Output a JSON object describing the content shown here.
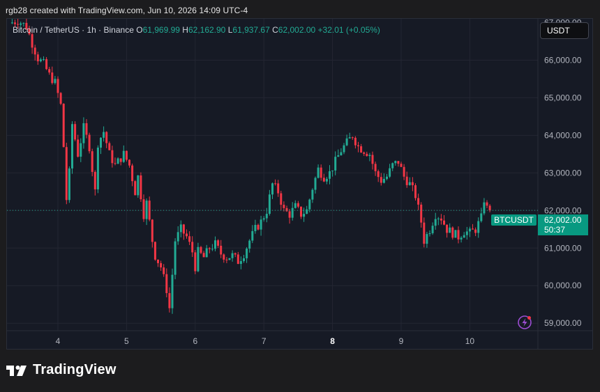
{
  "caption": "rgb28 created with TradingView.com, Jun 10, 2026 14:09 UTC-4",
  "legend": {
    "symbol": "Bitcoin / TetherUS · 1h · Binance",
    "open_key": "O",
    "open": "61,969.99",
    "high_key": "H",
    "high": "62,162.90",
    "low_key": "L",
    "low": "61,937.67",
    "close_key": "C",
    "close": "62,002.00",
    "change": "+32.01 (+0.05%)"
  },
  "currency_button": "USDT",
  "last_price": {
    "symbol": "BTCUSDT",
    "price": "62,002.00",
    "countdown": "50:37"
  },
  "branding": "TradingView",
  "icons": [
    "tradingview-logo-icon",
    "lightning-icon"
  ],
  "colors": {
    "up": "#22ab94",
    "down": "#f23645",
    "background": "#161a25",
    "grid": "#232632",
    "axis_text": "#b2b5be"
  },
  "chart_data": {
    "type": "candlestick",
    "title": "",
    "ylim": [
      58800,
      67100
    ],
    "y_ticks": [
      "59,000.00",
      "60,000.00",
      "61,000.00",
      "62,000.00",
      "63,000.00",
      "64,000.00",
      "65,000.00",
      "66,000.00"
    ],
    "y_tick_values": [
      59000,
      60000,
      61000,
      62000,
      63000,
      64000,
      65000,
      66000
    ],
    "x_ticks": [
      {
        "label": "4",
        "bold": false
      },
      {
        "label": "5",
        "bold": false
      },
      {
        "label": "6",
        "bold": false
      },
      {
        "label": "7",
        "bold": false
      },
      {
        "label": "8",
        "bold": true
      },
      {
        "label": "9",
        "bold": false
      },
      {
        "label": "10",
        "bold": false
      }
    ],
    "x_tick_hours": [
      17,
      41,
      65,
      89,
      113,
      137,
      161
    ],
    "grid": true,
    "last_close": 62002.0,
    "close_path": [
      [
        0,
        66980
      ],
      [
        3,
        67050
      ],
      [
        6,
        66900
      ],
      [
        8,
        66450
      ],
      [
        10,
        66050
      ],
      [
        12,
        65900
      ],
      [
        14,
        65600
      ],
      [
        16,
        65400
      ],
      [
        18,
        64800
      ],
      [
        19,
        63700
      ],
      [
        20,
        62300
      ],
      [
        21,
        63000
      ],
      [
        22,
        64300
      ],
      [
        24,
        63500
      ],
      [
        26,
        64200
      ],
      [
        28,
        63700
      ],
      [
        30,
        62500
      ],
      [
        31,
        63800
      ],
      [
        33,
        64100
      ],
      [
        35,
        63500
      ],
      [
        37,
        63200
      ],
      [
        40,
        63500
      ],
      [
        42,
        63200
      ],
      [
        44,
        62500
      ],
      [
        45,
        62900
      ],
      [
        47,
        61900
      ],
      [
        48,
        62200
      ],
      [
        50,
        61200
      ],
      [
        51,
        60800
      ],
      [
        53,
        60500
      ],
      [
        55,
        59900
      ],
      [
        56,
        59400
      ],
      [
        57,
        60300
      ],
      [
        58,
        61200
      ],
      [
        60,
        61500
      ],
      [
        62,
        61300
      ],
      [
        64,
        60900
      ],
      [
        65,
        60500
      ],
      [
        66,
        60900
      ],
      [
        68,
        60750
      ],
      [
        70,
        61000
      ],
      [
        72,
        61100
      ],
      [
        74,
        60850
      ],
      [
        76,
        60750
      ],
      [
        78,
        60800
      ],
      [
        80,
        60650
      ],
      [
        82,
        60850
      ],
      [
        84,
        61200
      ],
      [
        86,
        61500
      ],
      [
        88,
        61700
      ],
      [
        90,
        62000
      ],
      [
        92,
        62700
      ],
      [
        94,
        62500
      ],
      [
        96,
        62000
      ],
      [
        98,
        61900
      ],
      [
        100,
        62100
      ],
      [
        102,
        61900
      ],
      [
        104,
        62000
      ],
      [
        106,
        62600
      ],
      [
        108,
        63100
      ],
      [
        110,
        62900
      ],
      [
        112,
        63000
      ],
      [
        114,
        63300
      ],
      [
        116,
        63600
      ],
      [
        118,
        63800
      ],
      [
        120,
        64000
      ],
      [
        122,
        63700
      ],
      [
        124,
        63600
      ],
      [
        126,
        63500
      ],
      [
        128,
        63000
      ],
      [
        130,
        62800
      ],
      [
        132,
        62900
      ],
      [
        134,
        63200
      ],
      [
        136,
        63300
      ],
      [
        138,
        62900
      ],
      [
        140,
        62700
      ],
      [
        142,
        62400
      ],
      [
        144,
        61700
      ],
      [
        145,
        61200
      ],
      [
        147,
        61500
      ],
      [
        149,
        61900
      ],
      [
        151,
        61800
      ],
      [
        153,
        61500
      ],
      [
        155,
        61400
      ],
      [
        157,
        61300
      ],
      [
        159,
        61450
      ],
      [
        161,
        61400
      ],
      [
        163,
        61500
      ],
      [
        165,
        61800
      ],
      [
        166,
        62300
      ],
      [
        167,
        62050
      ],
      [
        168,
        62002
      ]
    ]
  }
}
